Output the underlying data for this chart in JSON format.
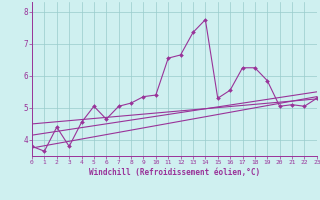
{
  "xlabel": "Windchill (Refroidissement éolien,°C)",
  "background_color": "#cff0f0",
  "line_color": "#993399",
  "grid_color": "#99cccc",
  "xlim": [
    0,
    23
  ],
  "ylim": [
    3.5,
    8.3
  ],
  "yticks": [
    4,
    5,
    6,
    7,
    8
  ],
  "xticks": [
    0,
    1,
    2,
    3,
    4,
    5,
    6,
    7,
    8,
    9,
    10,
    11,
    12,
    13,
    14,
    15,
    16,
    17,
    18,
    19,
    20,
    21,
    22,
    23
  ],
  "main_line_x": [
    0,
    1,
    2,
    3,
    4,
    5,
    6,
    7,
    8,
    9,
    10,
    11,
    12,
    13,
    14,
    15,
    16,
    17,
    18,
    19,
    20,
    21,
    22,
    23
  ],
  "main_line_y": [
    3.8,
    3.65,
    4.4,
    3.8,
    4.55,
    5.05,
    4.65,
    5.05,
    5.15,
    5.35,
    5.4,
    6.55,
    6.65,
    7.35,
    7.75,
    5.3,
    5.55,
    6.25,
    6.25,
    5.85,
    5.05,
    5.1,
    5.05,
    5.3
  ],
  "reg_line1_x": [
    0,
    23
  ],
  "reg_line1_y": [
    3.75,
    5.35
  ],
  "reg_line2_x": [
    0,
    23
  ],
  "reg_line2_y": [
    4.15,
    5.5
  ],
  "reg_line3_x": [
    0,
    23
  ],
  "reg_line3_y": [
    4.5,
    5.28
  ]
}
